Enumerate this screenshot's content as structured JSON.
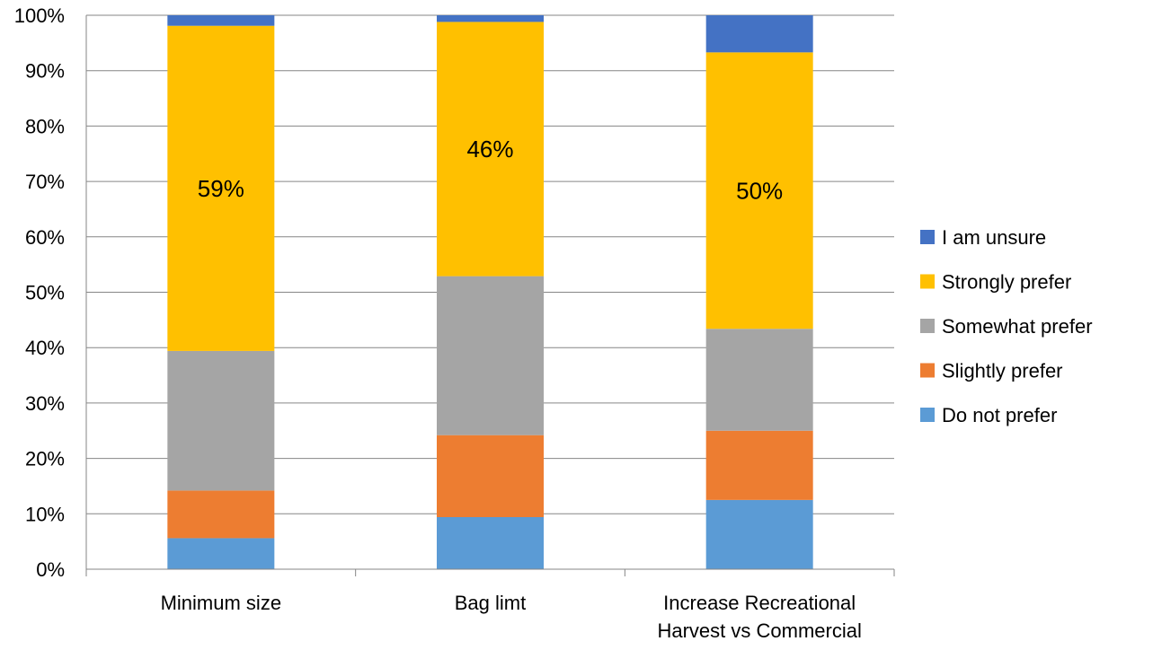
{
  "chart_data": {
    "type": "bar",
    "stacked": true,
    "percent": true,
    "title": "",
    "xlabel": "",
    "ylabel": "",
    "ylim": [
      0,
      100
    ],
    "y_ticks": [
      "0%",
      "10%",
      "20%",
      "30%",
      "40%",
      "50%",
      "60%",
      "70%",
      "80%",
      "90%",
      "100%"
    ],
    "grid": "horizontal",
    "legend_position": "right",
    "categories": [
      [
        "Minimum size"
      ],
      [
        "Bag limt"
      ],
      [
        "Increase Recreational",
        "Harvest vs Commercial"
      ]
    ],
    "series": [
      {
        "name": "Do not prefer",
        "color": "#5B9BD5",
        "values": [
          5.6,
          9.4,
          12.5
        ]
      },
      {
        "name": "Slightly prefer",
        "color": "#ED7D31",
        "values": [
          8.6,
          14.8,
          12.5
        ]
      },
      {
        "name": "Somewhat prefer",
        "color": "#A5A5A5",
        "values": [
          25.2,
          28.7,
          18.4
        ]
      },
      {
        "name": "Strongly prefer",
        "color": "#FFC000",
        "values": [
          58.7,
          45.9,
          49.9
        ]
      },
      {
        "name": "I am unsure",
        "color": "#4472C4",
        "values": [
          1.9,
          1.2,
          6.7
        ]
      }
    ],
    "data_labels": [
      {
        "series": "Strongly prefer",
        "category_index": 0,
        "text": "59%"
      },
      {
        "series": "Strongly prefer",
        "category_index": 1,
        "text": "46%"
      },
      {
        "series": "Strongly prefer",
        "category_index": 2,
        "text": "50%"
      }
    ],
    "legend_order": [
      "I am unsure",
      "Strongly prefer",
      "Somewhat prefer",
      "Slightly prefer",
      "Do not prefer"
    ]
  }
}
